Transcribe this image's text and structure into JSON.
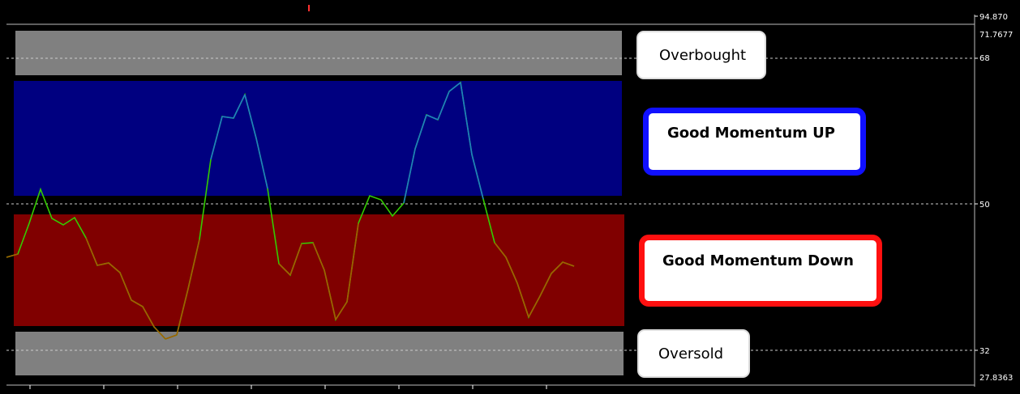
{
  "labels": {
    "overbought": "Overbought",
    "good_momentum_up": "Good Momentum UP",
    "good_momentum_down": "Good Momentum Down",
    "oversold": "Oversold"
  },
  "colors": {
    "background": "#000000",
    "overbought_zone": "#808080",
    "up_zone": "#000080",
    "down_zone": "#800000",
    "oversold_zone": "#808080",
    "line_green": "#33cc00",
    "line_blue_segment": "#1e7fc0",
    "line_red_segment": "#a06000",
    "up_border": "#1010ff",
    "down_border": "#ff1010"
  },
  "chart_data": {
    "type": "line",
    "title": "",
    "xlabel": "",
    "ylabel": "",
    "ylim": [
      27.8363,
      94.87
    ],
    "y_tick_labels": [
      "94.870",
      "71.7677",
      "68",
      "50",
      "32",
      "27.8363"
    ],
    "levels": [
      68,
      50,
      32
    ],
    "zones": [
      {
        "name": "Overbought",
        "from": 69,
        "to": 72
      },
      {
        "name": "Good Momentum UP",
        "from": 51,
        "to": 67
      },
      {
        "name": "Good Momentum Down",
        "from": 34,
        "to": 49
      },
      {
        "name": "Oversold",
        "from": 28,
        "to": 33
      }
    ],
    "series": [
      {
        "values": [
          43.4,
          43.8,
          47.6,
          51.8,
          48.2,
          47.4,
          48.3,
          45.8,
          42.4,
          42.7,
          41.5,
          38.1,
          37.3,
          34.8,
          33.3,
          33.8,
          39.5,
          45.6,
          55.5,
          60.8,
          60.6,
          63.5,
          58.1,
          51.9,
          42.6,
          41.2,
          45.1,
          45.2,
          41.8,
          35.7,
          37.9,
          47.6,
          51.0,
          50.5,
          48.5,
          50.1,
          56.8,
          61.0,
          60.4,
          63.9,
          65.0,
          56.1,
          50.6,
          45.2,
          43.4,
          40.2,
          36.0,
          38.6,
          41.4,
          42.8,
          42.3
        ]
      }
    ]
  }
}
